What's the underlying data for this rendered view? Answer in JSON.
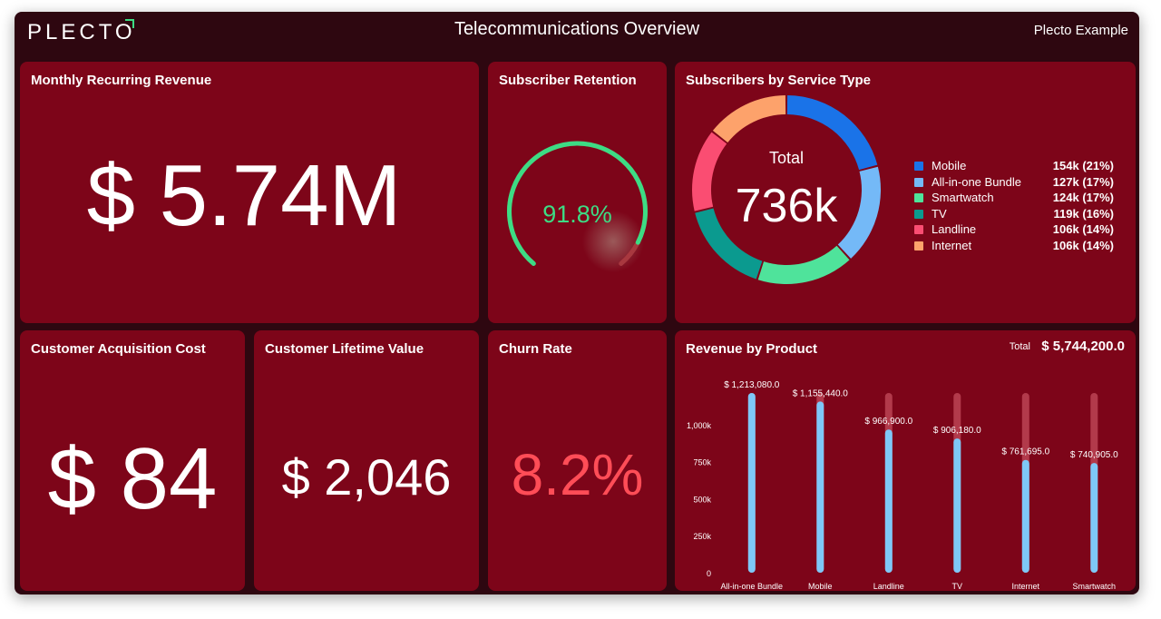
{
  "header": {
    "logo": "PLECTO",
    "title": "Telecommunications Overview",
    "account": "Plecto Example"
  },
  "colors": {
    "background": "#2e0710",
    "card": "#7d0519",
    "gauge_green": "#3ddc84",
    "churn_red": "#ff4d57",
    "bar_blue": "#7ec8f7"
  },
  "mrr": {
    "title": "Monthly Recurring Revenue",
    "value": "$ 5.74M"
  },
  "retention": {
    "title": "Subscriber Retention",
    "value": "91.8%",
    "fraction": 0.918
  },
  "service": {
    "title": "Subscribers by Service Type",
    "total_label": "Total",
    "total_value": "736k"
  },
  "cac": {
    "title": "Customer Acquisition Cost",
    "value": "$ 84"
  },
  "clv": {
    "title": "Customer Lifetime Value",
    "value": "$ 2,046"
  },
  "churn": {
    "title": "Churn Rate",
    "value": "8.2%"
  },
  "revenue": {
    "title": "Revenue by Product",
    "total_label": "Total",
    "total_value": "$ 5,744,200.0"
  },
  "chart_data": [
    {
      "type": "pie",
      "title": "Subscribers by Service Type",
      "center_label": "Total",
      "center_value": "736k",
      "legend_placement": "right",
      "slices": [
        {
          "name": "Mobile",
          "value": 154,
          "label": "154k (21%)",
          "color": "#1a73e8"
        },
        {
          "name": "All-in-one Bundle",
          "value": 127,
          "label": "127k (17%)",
          "color": "#74b9f7"
        },
        {
          "name": "Smartwatch",
          "value": 124,
          "label": "124k (17%)",
          "color": "#4fe39b"
        },
        {
          "name": "TV",
          "value": 119,
          "label": "119k (16%)",
          "color": "#0b9a8f"
        },
        {
          "name": "Landline",
          "value": 106,
          "label": "106k (14%)",
          "color": "#fa4d72"
        },
        {
          "name": "Internet",
          "value": 106,
          "label": "106k (14%)",
          "color": "#fda26b"
        }
      ]
    },
    {
      "type": "bar",
      "title": "Revenue by Product",
      "categories": [
        "All-in-one Bundle",
        "Mobile",
        "Landline",
        "TV",
        "Internet",
        "Smartwatch"
      ],
      "values": [
        1213080.0,
        1155440.0,
        966900.0,
        906180.0,
        761695.0,
        740905.0
      ],
      "value_labels": [
        "$ 1,213,080.0",
        "$ 1,155,440.0",
        "$ 966,900.0",
        "$ 906,180.0",
        "$ 761,695.0",
        "$ 740,905.0"
      ],
      "ylim": [
        0,
        1213080
      ],
      "yticks": [
        0,
        250000,
        500000,
        750000,
        1000000
      ],
      "ytick_labels": [
        "0",
        "250k",
        "500k",
        "750k",
        "1,000k"
      ],
      "grid": false
    }
  ]
}
